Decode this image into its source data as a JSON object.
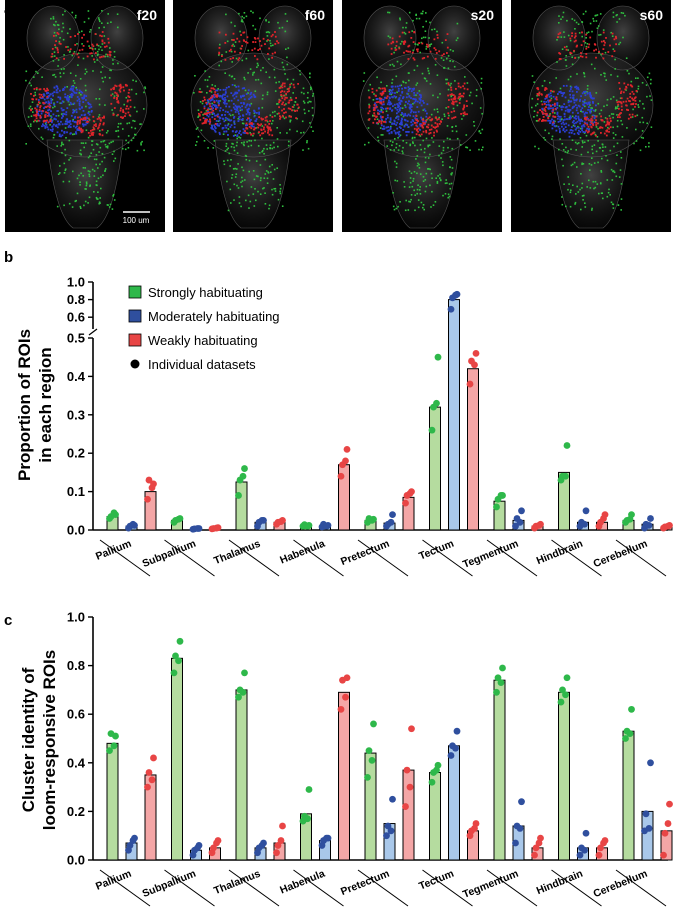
{
  "colors": {
    "strong_fill": "#b5dc9f",
    "strong_dot": "#2eb84a",
    "moderate_fill": "#a9c8ea",
    "moderate_dot": "#2f4f9e",
    "weak_fill": "#f4a6a6",
    "weak_dot": "#e84545"
  },
  "panel_a": {
    "letter": "a",
    "images": [
      {
        "label": "f20"
      },
      {
        "label": "f60"
      },
      {
        "label": "s20"
      },
      {
        "label": "s60"
      }
    ],
    "scale_bar_text": "100 um"
  },
  "legend": {
    "items": [
      {
        "label": "Strongly habituating",
        "marker": "square-green"
      },
      {
        "label": "Moderately habituating",
        "marker": "square-blue"
      },
      {
        "label": "Weakly habituating",
        "marker": "square-red"
      },
      {
        "label": "Individual datasets",
        "marker": "dot-black"
      }
    ]
  },
  "chart_data": [
    {
      "panel": "b",
      "type": "bar",
      "ylabel_lines": [
        "Proportion of ROIs",
        "in each region"
      ],
      "y_axis_break": true,
      "ylim_lower": [
        0,
        0.5
      ],
      "ylim_upper": [
        0.5,
        1.0
      ],
      "yticks_lower": [
        "0.0",
        "0.1",
        "0.2",
        "0.3",
        "0.4",
        "0.5"
      ],
      "yticks_upper": [
        "0.6",
        "0.8",
        "1.0"
      ],
      "categories": [
        "Pallium",
        "Subpallium",
        "Thalamus",
        "Habenula",
        "Pretectum",
        "Tectum",
        "Tegmentum",
        "Hindbrain",
        "Cerebellum"
      ],
      "series": [
        {
          "name": "Strongly habituating",
          "values": [
            0.035,
            0.025,
            0.125,
            0.012,
            0.025,
            0.32,
            0.075,
            0.15,
            0.025
          ],
          "points": [
            [
              0.03,
              0.04,
              0.035,
              0.045
            ],
            [
              0.02,
              0.03,
              0.025,
              0.028
            ],
            [
              0.09,
              0.16,
              0.13,
              0.14
            ],
            [
              0.01,
              0.012,
              0.014,
              0.01
            ],
            [
              0.02,
              0.028,
              0.03,
              0.025
            ],
            [
              0.26,
              0.45,
              0.32,
              0.33
            ],
            [
              0.06,
              0.09,
              0.08,
              0.09
            ],
            [
              0.13,
              0.22,
              0.14,
              0.14
            ],
            [
              0.02,
              0.04,
              0.025,
              0.028
            ]
          ]
        },
        {
          "name": "Moderately habituating",
          "values": [
            0.01,
            0.003,
            0.02,
            0.01,
            0.018,
            0.8,
            0.025,
            0.02,
            0.015
          ],
          "points": [
            [
              0.005,
              0.012,
              0.01,
              0.015
            ],
            [
              0.002,
              0.004,
              0.003,
              0.004
            ],
            [
              0.01,
              0.025,
              0.02,
              0.025
            ],
            [
              0.008,
              0.012,
              0.015,
              0.01
            ],
            [
              0.01,
              0.04,
              0.015,
              0.02
            ],
            [
              0.69,
              0.86,
              0.82,
              0.85
            ],
            [
              0.01,
              0.05,
              0.03,
              0.02
            ],
            [
              0.01,
              0.05,
              0.02,
              0.015
            ],
            [
              0.005,
              0.03,
              0.015,
              0.012
            ]
          ]
        },
        {
          "name": "Weakly habituating",
          "values": [
            0.1,
            0.005,
            0.02,
            0.17,
            0.085,
            0.42,
            0.01,
            0.02,
            0.008
          ],
          "points": [
            [
              0.08,
              0.12,
              0.13,
              0.11
            ],
            [
              0.003,
              0.006,
              0.004,
              0.005
            ],
            [
              0.015,
              0.025,
              0.02,
              0.022
            ],
            [
              0.14,
              0.21,
              0.17,
              0.18
            ],
            [
              0.07,
              0.1,
              0.09,
              0.095
            ],
            [
              0.38,
              0.46,
              0.44,
              0.43
            ],
            [
              0.005,
              0.015,
              0.01,
              0.012
            ],
            [
              0.01,
              0.04,
              0.02,
              0.03
            ],
            [
              0.005,
              0.012,
              0.008,
              0.01
            ]
          ]
        }
      ]
    },
    {
      "panel": "c",
      "type": "bar",
      "ylabel_lines": [
        "Cluster identity of",
        "loom-responsive ROIs"
      ],
      "ylim": [
        0,
        1.0
      ],
      "yticks": [
        "0.0",
        "0.2",
        "0.4",
        "0.6",
        "0.8",
        "1.0"
      ],
      "categories": [
        "Pallium",
        "Subpallium",
        "Thalamus",
        "Habenula",
        "Pretectum",
        "Tectum",
        "Tegmentum",
        "Hindbrain",
        "Cerebellum"
      ],
      "series": [
        {
          "name": "Strongly habituating",
          "values": [
            0.48,
            0.83,
            0.7,
            0.19,
            0.44,
            0.36,
            0.74,
            0.69,
            0.53
          ],
          "points": [
            [
              0.45,
              0.51,
              0.52,
              0.47
            ],
            [
              0.77,
              0.9,
              0.84,
              0.82
            ],
            [
              0.67,
              0.77,
              0.7,
              0.69
            ],
            [
              0.16,
              0.29,
              0.18,
              0.17
            ],
            [
              0.34,
              0.56,
              0.45,
              0.41
            ],
            [
              0.32,
              0.39,
              0.36,
              0.37
            ],
            [
              0.69,
              0.79,
              0.75,
              0.73
            ],
            [
              0.65,
              0.75,
              0.7,
              0.68
            ],
            [
              0.5,
              0.62,
              0.53,
              0.52
            ]
          ]
        },
        {
          "name": "Moderately habituating",
          "values": [
            0.07,
            0.04,
            0.05,
            0.08,
            0.15,
            0.47,
            0.14,
            0.05,
            0.2
          ],
          "points": [
            [
              0.04,
              0.09,
              0.06,
              0.08
            ],
            [
              0.02,
              0.06,
              0.04,
              0.05
            ],
            [
              0.03,
              0.07,
              0.05,
              0.06
            ],
            [
              0.06,
              0.09,
              0.08,
              0.09
            ],
            [
              0.1,
              0.25,
              0.14,
              0.12
            ],
            [
              0.43,
              0.53,
              0.47,
              0.46
            ],
            [
              0.07,
              0.24,
              0.14,
              0.13
            ],
            [
              0.02,
              0.11,
              0.05,
              0.04
            ],
            [
              0.12,
              0.4,
              0.19,
              0.13
            ]
          ]
        },
        {
          "name": "Weakly habituating",
          "values": [
            0.35,
            0.05,
            0.07,
            0.69,
            0.37,
            0.12,
            0.05,
            0.05,
            0.12
          ],
          "points": [
            [
              0.3,
              0.42,
              0.36,
              0.33
            ],
            [
              0.03,
              0.08,
              0.05,
              0.07
            ],
            [
              0.03,
              0.14,
              0.06,
              0.08
            ],
            [
              0.62,
              0.75,
              0.74,
              0.67
            ],
            [
              0.22,
              0.54,
              0.37,
              0.3
            ],
            [
              0.1,
              0.15,
              0.12,
              0.13
            ],
            [
              0.02,
              0.09,
              0.05,
              0.07
            ],
            [
              0.02,
              0.08,
              0.05,
              0.07
            ],
            [
              0.02,
              0.23,
              0.11,
              0.15
            ]
          ]
        }
      ]
    }
  ]
}
